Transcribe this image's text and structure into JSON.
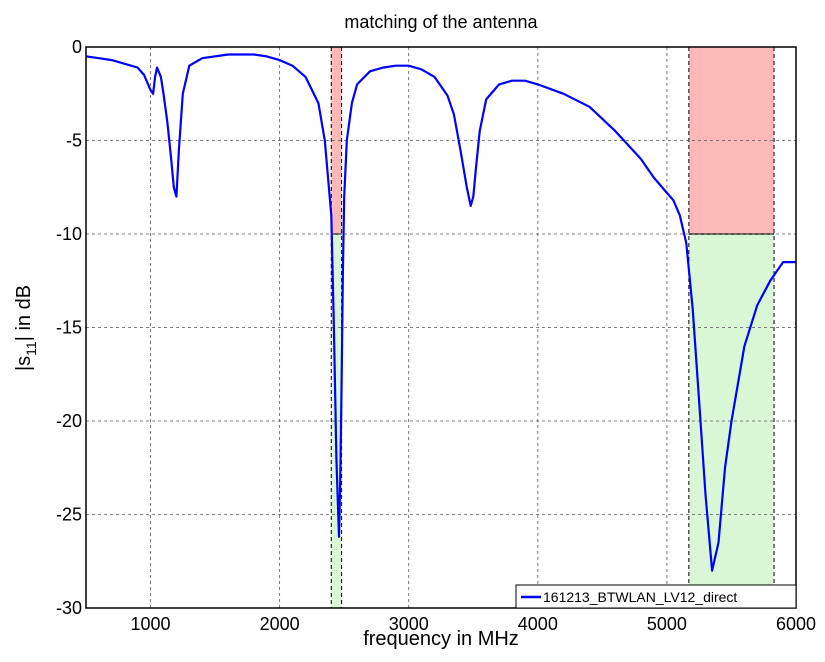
{
  "chart_data": {
    "type": "line",
    "title": "matching of the antenna",
    "xlabel": "frequency in MHz",
    "ylabel_main": "|s",
    "ylabel_sub": "11",
    "ylabel_rest": "| in dB",
    "xlim": [
      500,
      6000
    ],
    "ylim": [
      -30,
      0
    ],
    "x_ticks": [
      1000,
      2000,
      3000,
      4000,
      5000,
      6000
    ],
    "x_tick_labels": [
      "1000",
      "2000",
      "3000",
      "4000",
      "5000",
      "6000"
    ],
    "y_ticks": [
      0,
      -5,
      -10,
      -15,
      -20,
      -25,
      -30
    ],
    "y_tick_labels": [
      "0",
      "-5",
      "-10",
      "-15",
      "-20",
      "-25",
      "-30"
    ],
    "grid": true,
    "legend_position": "bottom-right",
    "series": [
      {
        "name": "161213_BTWLAN_LV12_direct",
        "color": "#0000ff",
        "x": [
          500,
          600,
          700,
          800,
          900,
          950,
          1000,
          1020,
          1035,
          1050,
          1080,
          1100,
          1130,
          1160,
          1180,
          1200,
          1220,
          1250,
          1300,
          1400,
          1500,
          1600,
          1700,
          1800,
          1900,
          2000,
          2100,
          2200,
          2300,
          2350,
          2400,
          2420,
          2440,
          2460,
          2470,
          2480,
          2490,
          2500,
          2520,
          2560,
          2600,
          2700,
          2800,
          2900,
          3000,
          3100,
          3200,
          3300,
          3350,
          3400,
          3450,
          3480,
          3500,
          3520,
          3550,
          3600,
          3700,
          3800,
          3900,
          4000,
          4200,
          4400,
          4600,
          4800,
          4900,
          5000,
          5050,
          5100,
          5150,
          5200,
          5250,
          5300,
          5350,
          5400,
          5450,
          5500,
          5600,
          5700,
          5800,
          5900,
          6000
        ],
        "y": [
          -0.5,
          -0.6,
          -0.7,
          -0.9,
          -1.1,
          -1.5,
          -2.3,
          -2.5,
          -1.6,
          -1.1,
          -1.6,
          -2.5,
          -4.0,
          -6.0,
          -7.5,
          -8.0,
          -5.5,
          -2.5,
          -1.0,
          -0.6,
          -0.5,
          -0.4,
          -0.4,
          -0.4,
          -0.5,
          -0.7,
          -1.0,
          -1.6,
          -3.0,
          -5.0,
          -9.0,
          -15.0,
          -22.0,
          -26.2,
          -23.0,
          -18.0,
          -12.0,
          -8.0,
          -5.0,
          -3.0,
          -2.0,
          -1.3,
          -1.1,
          -1.0,
          -1.0,
          -1.2,
          -1.6,
          -2.6,
          -3.6,
          -5.5,
          -7.5,
          -8.5,
          -8.0,
          -6.5,
          -4.5,
          -2.8,
          -2.0,
          -1.8,
          -1.8,
          -2.0,
          -2.5,
          -3.2,
          -4.5,
          -6.0,
          -7.0,
          -7.8,
          -8.2,
          -9.0,
          -10.5,
          -14.0,
          -19.0,
          -24.0,
          -28.0,
          -26.5,
          -22.5,
          -20.0,
          -16.0,
          -13.8,
          -12.5,
          -11.5,
          -11.5
        ]
      }
    ],
    "shaded_regions": [
      {
        "x_range": [
          2400,
          2480
        ],
        "y_range": [
          0,
          -10
        ],
        "color": "#ffb8b8",
        "meaning": "red"
      },
      {
        "x_range": [
          2400,
          2480
        ],
        "y_range": [
          -10,
          -30
        ],
        "color": "#d9f7d4",
        "meaning": "green"
      },
      {
        "x_range": [
          5170,
          5830
        ],
        "y_range": [
          0,
          -10
        ],
        "color": "#ffb8b8",
        "meaning": "red"
      },
      {
        "x_range": [
          5170,
          5830
        ],
        "y_range": [
          -10,
          -30
        ],
        "color": "#d9f7d4",
        "meaning": "green"
      }
    ]
  }
}
